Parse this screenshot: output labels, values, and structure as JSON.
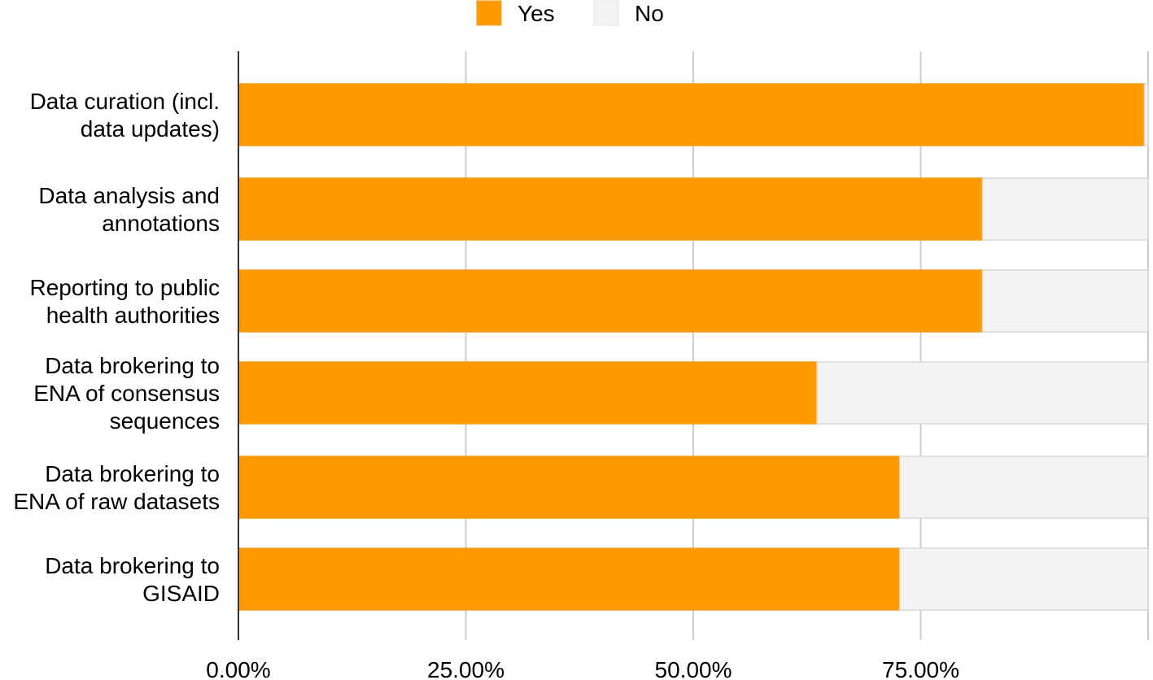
{
  "chart_data": {
    "type": "bar",
    "orientation": "horizontal",
    "stacked": true,
    "categories": [
      [
        "Data curation (incl.",
        "data updates)"
      ],
      [
        "Data analysis and",
        "annotations"
      ],
      [
        "Reporting to public",
        "health authorities"
      ],
      [
        "Data brokering to",
        "ENA of consensus",
        "sequences"
      ],
      [
        "Data brokering to",
        "ENA of raw datasets"
      ],
      [
        "Data brokering to",
        "GISAID"
      ]
    ],
    "series": [
      {
        "name": "Yes",
        "color": "#ff9900",
        "values": [
          99.6,
          81.8,
          81.8,
          63.6,
          72.7,
          72.7
        ]
      },
      {
        "name": "No",
        "color": "#f3f3f3",
        "values": [
          0.4,
          18.2,
          18.2,
          36.4,
          27.3,
          27.3
        ]
      }
    ],
    "xlim": [
      0,
      100
    ],
    "xticks": [
      0,
      25,
      50,
      75
    ],
    "xtick_labels": [
      "0.00%",
      "25.00%",
      "50.00%",
      "75.00%"
    ],
    "grid": true,
    "legend_position": "top",
    "title": "",
    "xlabel": "",
    "ylabel": ""
  }
}
